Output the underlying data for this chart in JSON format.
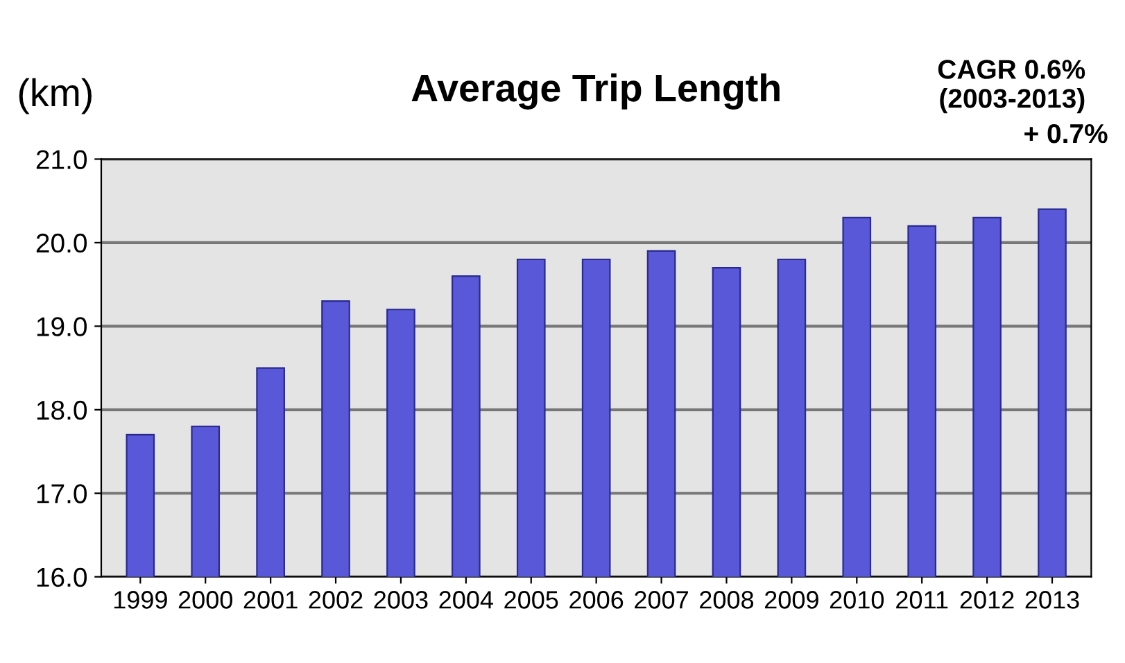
{
  "chart_data": {
    "type": "bar",
    "title": "Average Trip Length",
    "ylabel": "(km)",
    "categories": [
      "1999",
      "2000",
      "2001",
      "2002",
      "2003",
      "2004",
      "2005",
      "2006",
      "2007",
      "2008",
      "2009",
      "2010",
      "2011",
      "2012",
      "2013"
    ],
    "values": [
      17.7,
      17.8,
      18.5,
      19.3,
      19.2,
      19.6,
      19.8,
      19.8,
      19.9,
      19.7,
      19.8,
      20.3,
      20.2,
      20.3,
      20.4
    ],
    "color": "#5858d8",
    "ylim": [
      16,
      21
    ],
    "yticks": [
      {
        "value": 16,
        "label": "16.0"
      },
      {
        "value": 17,
        "label": "17.0"
      },
      {
        "value": 18,
        "label": "18.0"
      },
      {
        "value": 19,
        "label": "19.0"
      },
      {
        "value": 20,
        "label": "20.0"
      },
      {
        "value": 21,
        "label": "21.0"
      }
    ],
    "grid": "y",
    "annotations": [
      "CAGR 0.6%\n(2003-2013)",
      "+ 0.7%"
    ]
  }
}
